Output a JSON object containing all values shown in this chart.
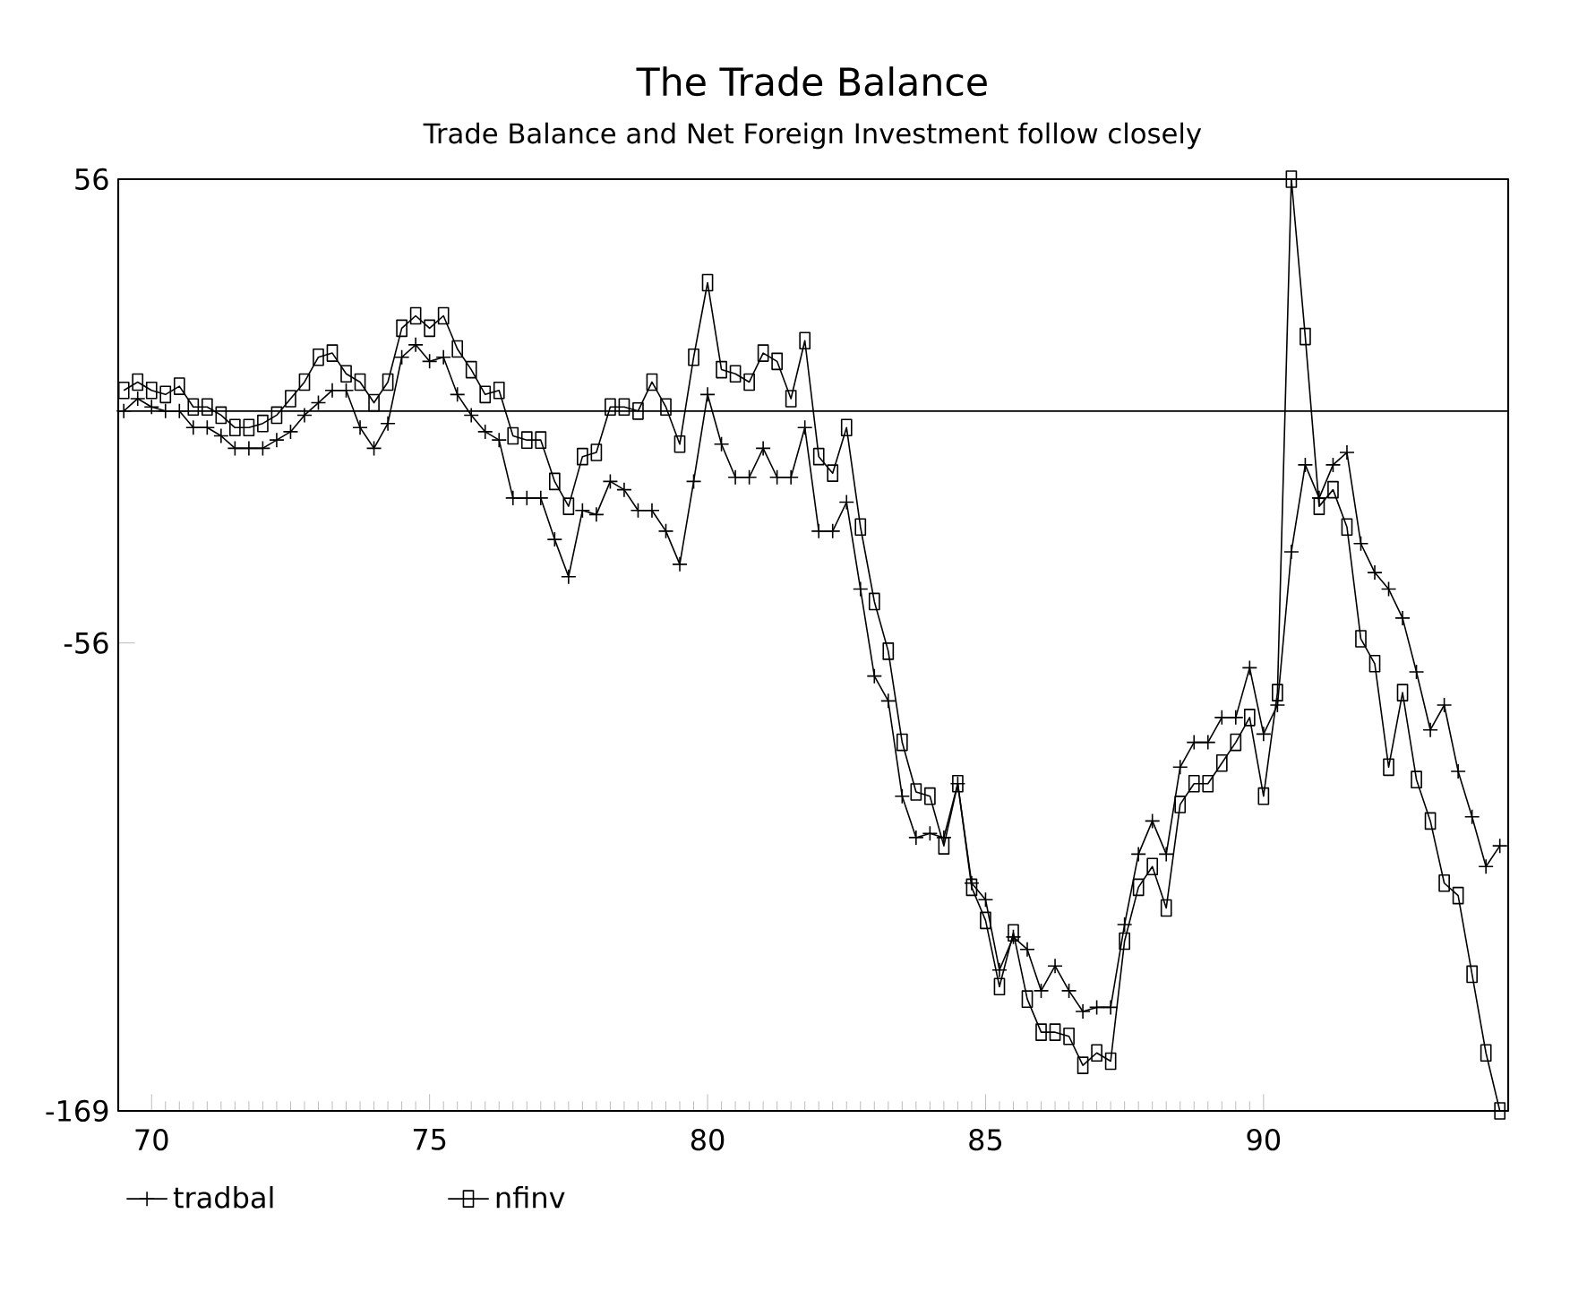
{
  "chart_data": {
    "type": "line",
    "title": "The Trade Balance",
    "subtitle": "Trade Balance and Net Foreign Investment follow closely",
    "x": [
      69.5,
      69.75,
      70,
      70.25,
      70.5,
      70.75,
      71,
      71.25,
      71.5,
      71.75,
      72,
      72.25,
      72.5,
      72.75,
      73,
      73.25,
      73.5,
      73.75,
      74,
      74.25,
      74.5,
      74.75,
      75,
      75.25,
      75.5,
      75.75,
      76,
      76.25,
      76.5,
      76.75,
      77,
      77.25,
      77.5,
      77.75,
      78,
      78.25,
      78.5,
      78.75,
      79,
      79.25,
      79.5,
      79.75,
      80,
      80.25,
      80.5,
      80.75,
      81,
      81.25,
      81.5,
      81.75,
      82,
      82.25,
      82.5,
      82.75,
      83,
      83.25,
      83.5,
      83.75,
      84,
      84.25,
      84.5,
      84.75,
      85,
      85.25,
      85.5,
      85.75,
      86,
      86.25,
      86.5,
      86.75,
      87,
      87.25,
      87.5,
      87.75,
      88,
      88.25,
      88.5,
      88.75,
      89,
      89.25,
      89.5,
      89.75,
      90,
      90.25,
      90.5,
      90.75,
      91,
      91.25,
      91.5,
      91.75,
      92,
      92.25,
      92.5,
      92.75,
      93,
      93.25,
      93.5,
      93.75,
      94,
      94.25
    ],
    "series": [
      {
        "name": "tradbal",
        "color": "#000000",
        "marker": "cross",
        "values": [
          0,
          3,
          1,
          0,
          0,
          -4,
          -4,
          -6,
          -9,
          -9,
          -9,
          -7,
          -5,
          -1,
          2,
          5,
          5,
          -4,
          -9,
          -3,
          13,
          16,
          12,
          13,
          4,
          -1,
          -5,
          -7,
          -21,
          -21,
          -21,
          -31,
          -40,
          -24,
          -25,
          -17,
          -19,
          -24,
          -24,
          -29,
          -37,
          -17,
          4,
          -8,
          -16,
          -16,
          -9,
          -16,
          -16,
          -4,
          -29,
          -29,
          -22,
          -43,
          -64,
          -70,
          -93,
          -103,
          -102,
          -103,
          -90,
          -114,
          -118,
          -135,
          -127,
          -130,
          -140,
          -134,
          -140,
          -145,
          -144,
          -144,
          -124,
          -107,
          -99,
          -107,
          -86,
          -80,
          -80,
          -74,
          -74,
          -62,
          -78,
          -71,
          -34,
          -13,
          -21,
          -13,
          -10,
          -32,
          -39,
          -43,
          -50,
          -63,
          -77,
          -71,
          -87,
          -98,
          -110,
          -105
        ]
      },
      {
        "name": "nfinv",
        "color": "#000000",
        "marker": "square",
        "values": [
          5,
          7,
          5,
          4,
          6,
          1,
          1,
          -1,
          -4,
          -4,
          -3,
          -1,
          3,
          7,
          13,
          14,
          9,
          7,
          2,
          7,
          20,
          23,
          20,
          23,
          15,
          10,
          4,
          5,
          -6,
          -7,
          -7,
          -17,
          -23,
          -11,
          -10,
          1,
          1,
          0,
          7,
          1,
          -8,
          13,
          31,
          10,
          9,
          7,
          14,
          12,
          3,
          17,
          -11,
          -15,
          -4,
          -28,
          -46,
          -58,
          -80,
          -92,
          -93,
          -105,
          -90,
          -115,
          -123,
          -139,
          -126,
          -142,
          -150,
          -150,
          -151,
          -158,
          -155,
          -157,
          -128,
          -115,
          -110,
          -120,
          -95,
          -90,
          -90,
          -85,
          -80,
          -74,
          -93,
          -68,
          56,
          18,
          -23,
          -19,
          -28,
          -55,
          -61,
          -86,
          -68,
          -89,
          -99,
          -114,
          -117,
          -136,
          -155,
          -169
        ]
      }
    ],
    "xlim": [
      69.4,
      94.4
    ],
    "xticks": [
      70,
      75,
      80,
      85,
      90
    ],
    "ylim": [
      -169,
      56
    ],
    "yticks": [
      56,
      -56,
      -169
    ],
    "ref_lines": [
      {
        "axis": "y",
        "value": 0,
        "color": "#000000"
      }
    ],
    "line_style": "solid",
    "legend": "bottom left",
    "grid": false
  }
}
